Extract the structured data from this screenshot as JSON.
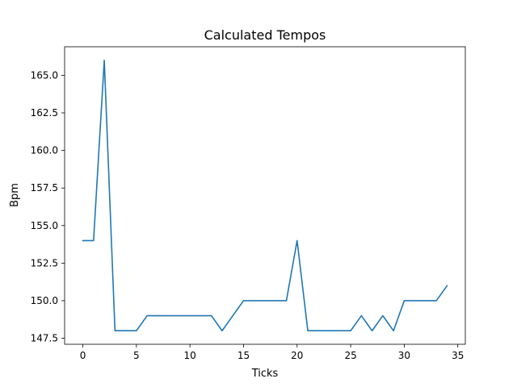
{
  "chart_data": {
    "type": "line",
    "title": "Calculated Tempos",
    "xlabel": "Ticks",
    "ylabel": "Bpm",
    "xlim": [
      -1.7,
      35.7
    ],
    "ylim": [
      147.1,
      166.9
    ],
    "xticks": [
      0,
      5,
      10,
      15,
      20,
      25,
      30,
      35
    ],
    "xtick_labels": [
      "0",
      "5",
      "10",
      "15",
      "20",
      "25",
      "30",
      "35"
    ],
    "yticks": [
      147.5,
      150.0,
      152.5,
      155.0,
      157.5,
      160.0,
      162.5,
      165.0
    ],
    "ytick_labels": [
      "147.5",
      "150.0",
      "152.5",
      "155.0",
      "157.5",
      "160.0",
      "162.5",
      "165.0"
    ],
    "grid": false,
    "series": [
      {
        "color": "#1f77b4",
        "x": [
          0,
          1,
          2,
          3,
          4,
          5,
          6,
          7,
          8,
          9,
          10,
          11,
          12,
          13,
          14,
          15,
          16,
          17,
          18,
          19,
          20,
          21,
          22,
          23,
          24,
          25,
          26,
          27,
          28,
          29,
          30,
          31,
          32,
          33,
          34
        ],
        "y": [
          154,
          154,
          166,
          148,
          148,
          148,
          149,
          149,
          149,
          149,
          149,
          149,
          149,
          148,
          149,
          150,
          150,
          150,
          150,
          150,
          154,
          148,
          148,
          148,
          148,
          148,
          149,
          148,
          149,
          148,
          150,
          150,
          150,
          150,
          151
        ]
      }
    ]
  }
}
